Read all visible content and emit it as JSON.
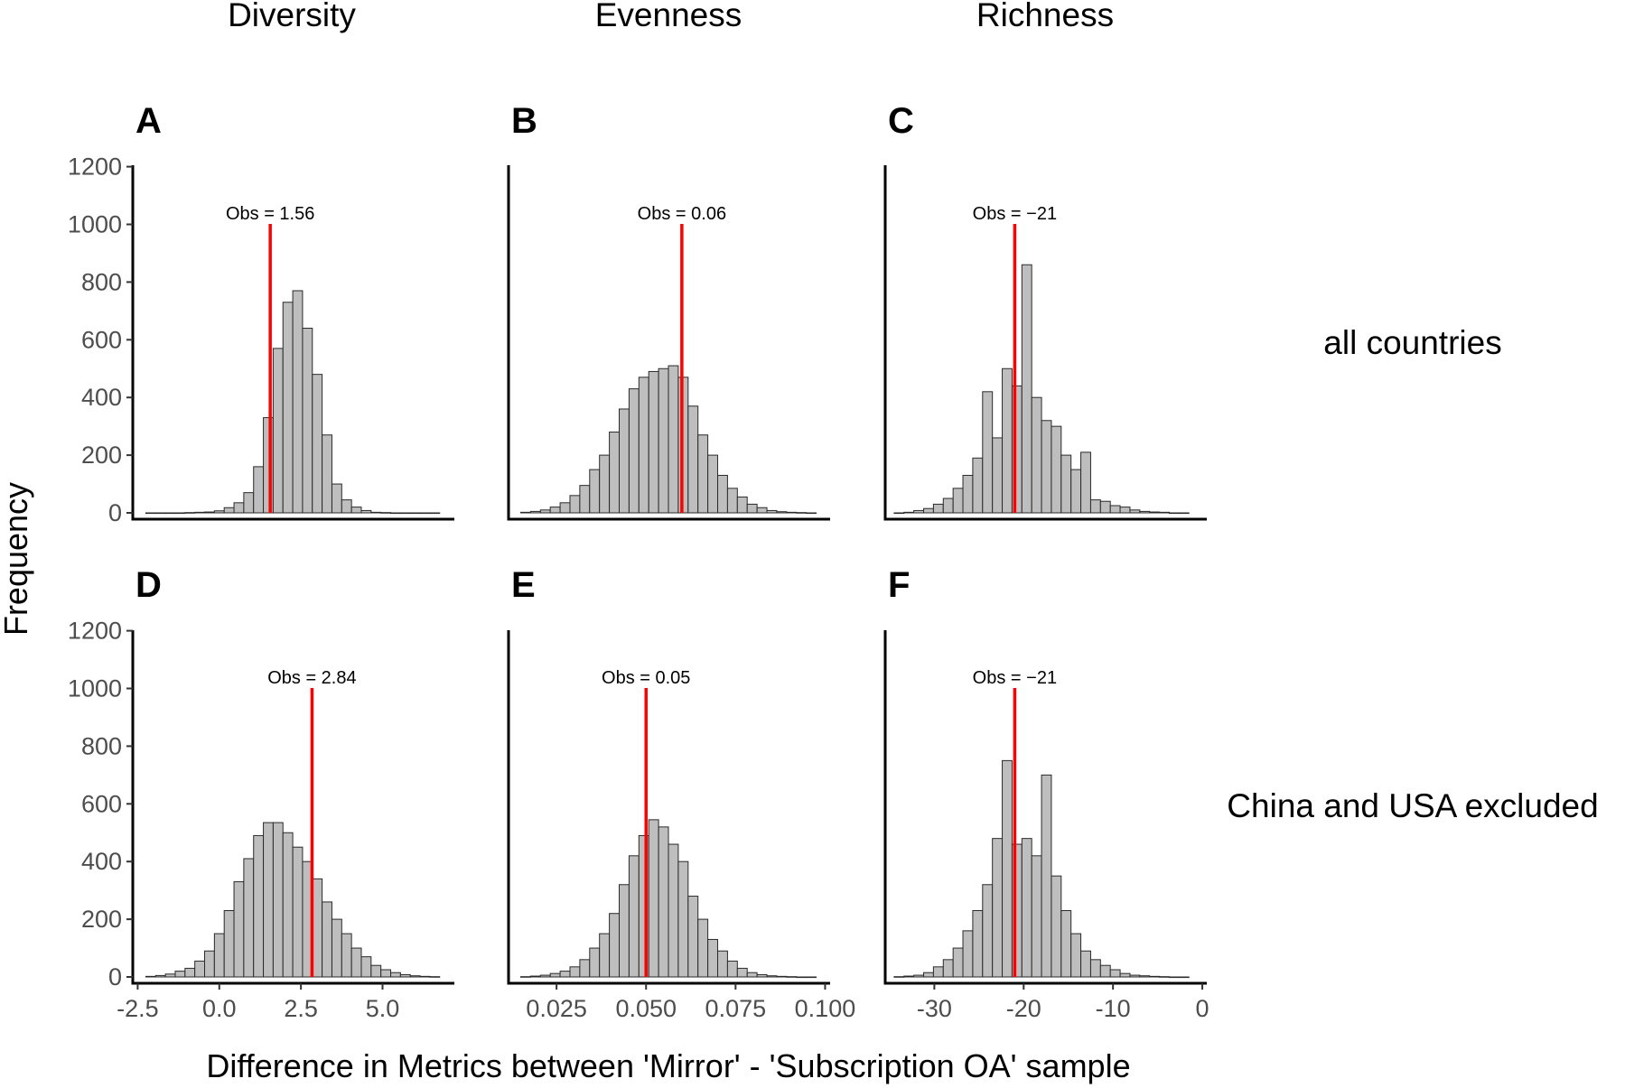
{
  "chart_data": {
    "type": "bar",
    "ylabel": "Frequency",
    "xlabel": "Difference in Metrics between 'Mirror' - 'Subscription OA' sample",
    "columns": [
      "Diversity",
      "Evenness",
      "Richness"
    ],
    "rows": [
      "all countries",
      "China and USA excluded"
    ],
    "colors": {
      "bar_fill": "#bebebe",
      "bar_stroke": "#2a2a2a",
      "obs_line": "#ff0000"
    },
    "y_ticks": [
      "0",
      "200",
      "400",
      "600",
      "800",
      "1000",
      "1200"
    ],
    "x_axes": [
      {
        "column": "Diversity",
        "ticks": [
          "-2.5",
          "0.0",
          "2.5",
          "5.0"
        ],
        "tick_values": [
          -2.5,
          0.0,
          2.5,
          5.0
        ],
        "xlim": [
          -2.65,
          7.2
        ]
      },
      {
        "column": "Evenness",
        "ticks": [
          "0.025",
          "0.050",
          "0.075",
          "0.100"
        ],
        "tick_values": [
          0.025,
          0.05,
          0.075,
          0.1
        ],
        "xlim": [
          0.0116,
          0.1014
        ]
      },
      {
        "column": "Richness",
        "ticks": [
          "-30",
          "-20",
          "-10",
          "0"
        ],
        "tick_values": [
          -30,
          -20,
          -10,
          0
        ],
        "xlim": [
          -35.5,
          0.5
        ]
      }
    ],
    "panels": [
      {
        "label": "A",
        "row": "all countries",
        "column": "Diversity",
        "obs": 1.56,
        "obs_label": "Obs = 1.56",
        "ylim": [
          0,
          1200
        ],
        "bin_start": -2.25,
        "bin_width": 0.3,
        "counts": [
          0,
          0,
          0,
          0,
          1,
          2,
          3,
          7,
          18,
          35,
          70,
          160,
          330,
          570,
          730,
          770,
          640,
          480,
          270,
          100,
          45,
          20,
          8,
          2,
          1,
          0,
          0,
          0,
          0,
          0
        ]
      },
      {
        "label": "B",
        "row": "all countries",
        "column": "Evenness",
        "obs": 0.06,
        "obs_label": "Obs = 0.06",
        "ylim": [
          0,
          1200
        ],
        "bin_start": 0.015,
        "bin_width": 0.00275,
        "counts": [
          2,
          5,
          10,
          20,
          35,
          60,
          95,
          150,
          200,
          280,
          360,
          430,
          470,
          490,
          500,
          510,
          470,
          370,
          270,
          200,
          130,
          85,
          55,
          30,
          18,
          8,
          4,
          2,
          1,
          0
        ]
      },
      {
        "label": "C",
        "row": "all countries",
        "column": "Richness",
        "obs": -21,
        "obs_label": "Obs = −21",
        "ylim": [
          0,
          1200
        ],
        "bin_start": -34.5,
        "bin_width": 1.1,
        "counts": [
          0,
          2,
          8,
          15,
          30,
          50,
          85,
          130,
          190,
          420,
          260,
          500,
          440,
          860,
          400,
          320,
          300,
          200,
          150,
          210,
          45,
          40,
          25,
          20,
          10,
          5,
          3,
          2,
          0,
          0
        ]
      },
      {
        "label": "D",
        "row": "China and USA excluded",
        "column": "Diversity",
        "obs": 2.84,
        "obs_label": "Obs = 2.84",
        "ylim": [
          0,
          1200
        ],
        "bin_start": -2.25,
        "bin_width": 0.3,
        "counts": [
          2,
          5,
          10,
          20,
          30,
          55,
          90,
          150,
          230,
          330,
          410,
          490,
          535,
          535,
          500,
          450,
          400,
          340,
          260,
          200,
          150,
          100,
          70,
          40,
          25,
          15,
          8,
          4,
          2,
          1
        ]
      },
      {
        "label": "E",
        "row": "China and USA excluded",
        "column": "Evenness",
        "obs": 0.05,
        "obs_label": "Obs = 0.05",
        "ylim": [
          0,
          1200
        ],
        "bin_start": 0.015,
        "bin_width": 0.00275,
        "counts": [
          1,
          3,
          6,
          12,
          20,
          35,
          60,
          100,
          150,
          220,
          320,
          420,
          490,
          545,
          520,
          460,
          400,
          280,
          200,
          130,
          90,
          55,
          30,
          15,
          8,
          4,
          2,
          1,
          0,
          0
        ]
      },
      {
        "label": "F",
        "row": "China and USA excluded",
        "column": "Richness",
        "obs": -21,
        "obs_label": "Obs = −21",
        "ylim": [
          0,
          1200
        ],
        "bin_start": -34.5,
        "bin_width": 1.1,
        "counts": [
          1,
          3,
          6,
          15,
          35,
          60,
          100,
          160,
          230,
          320,
          480,
          750,
          460,
          480,
          420,
          700,
          350,
          230,
          150,
          90,
          60,
          40,
          25,
          12,
          6,
          4,
          2,
          1,
          0,
          0
        ]
      }
    ]
  }
}
